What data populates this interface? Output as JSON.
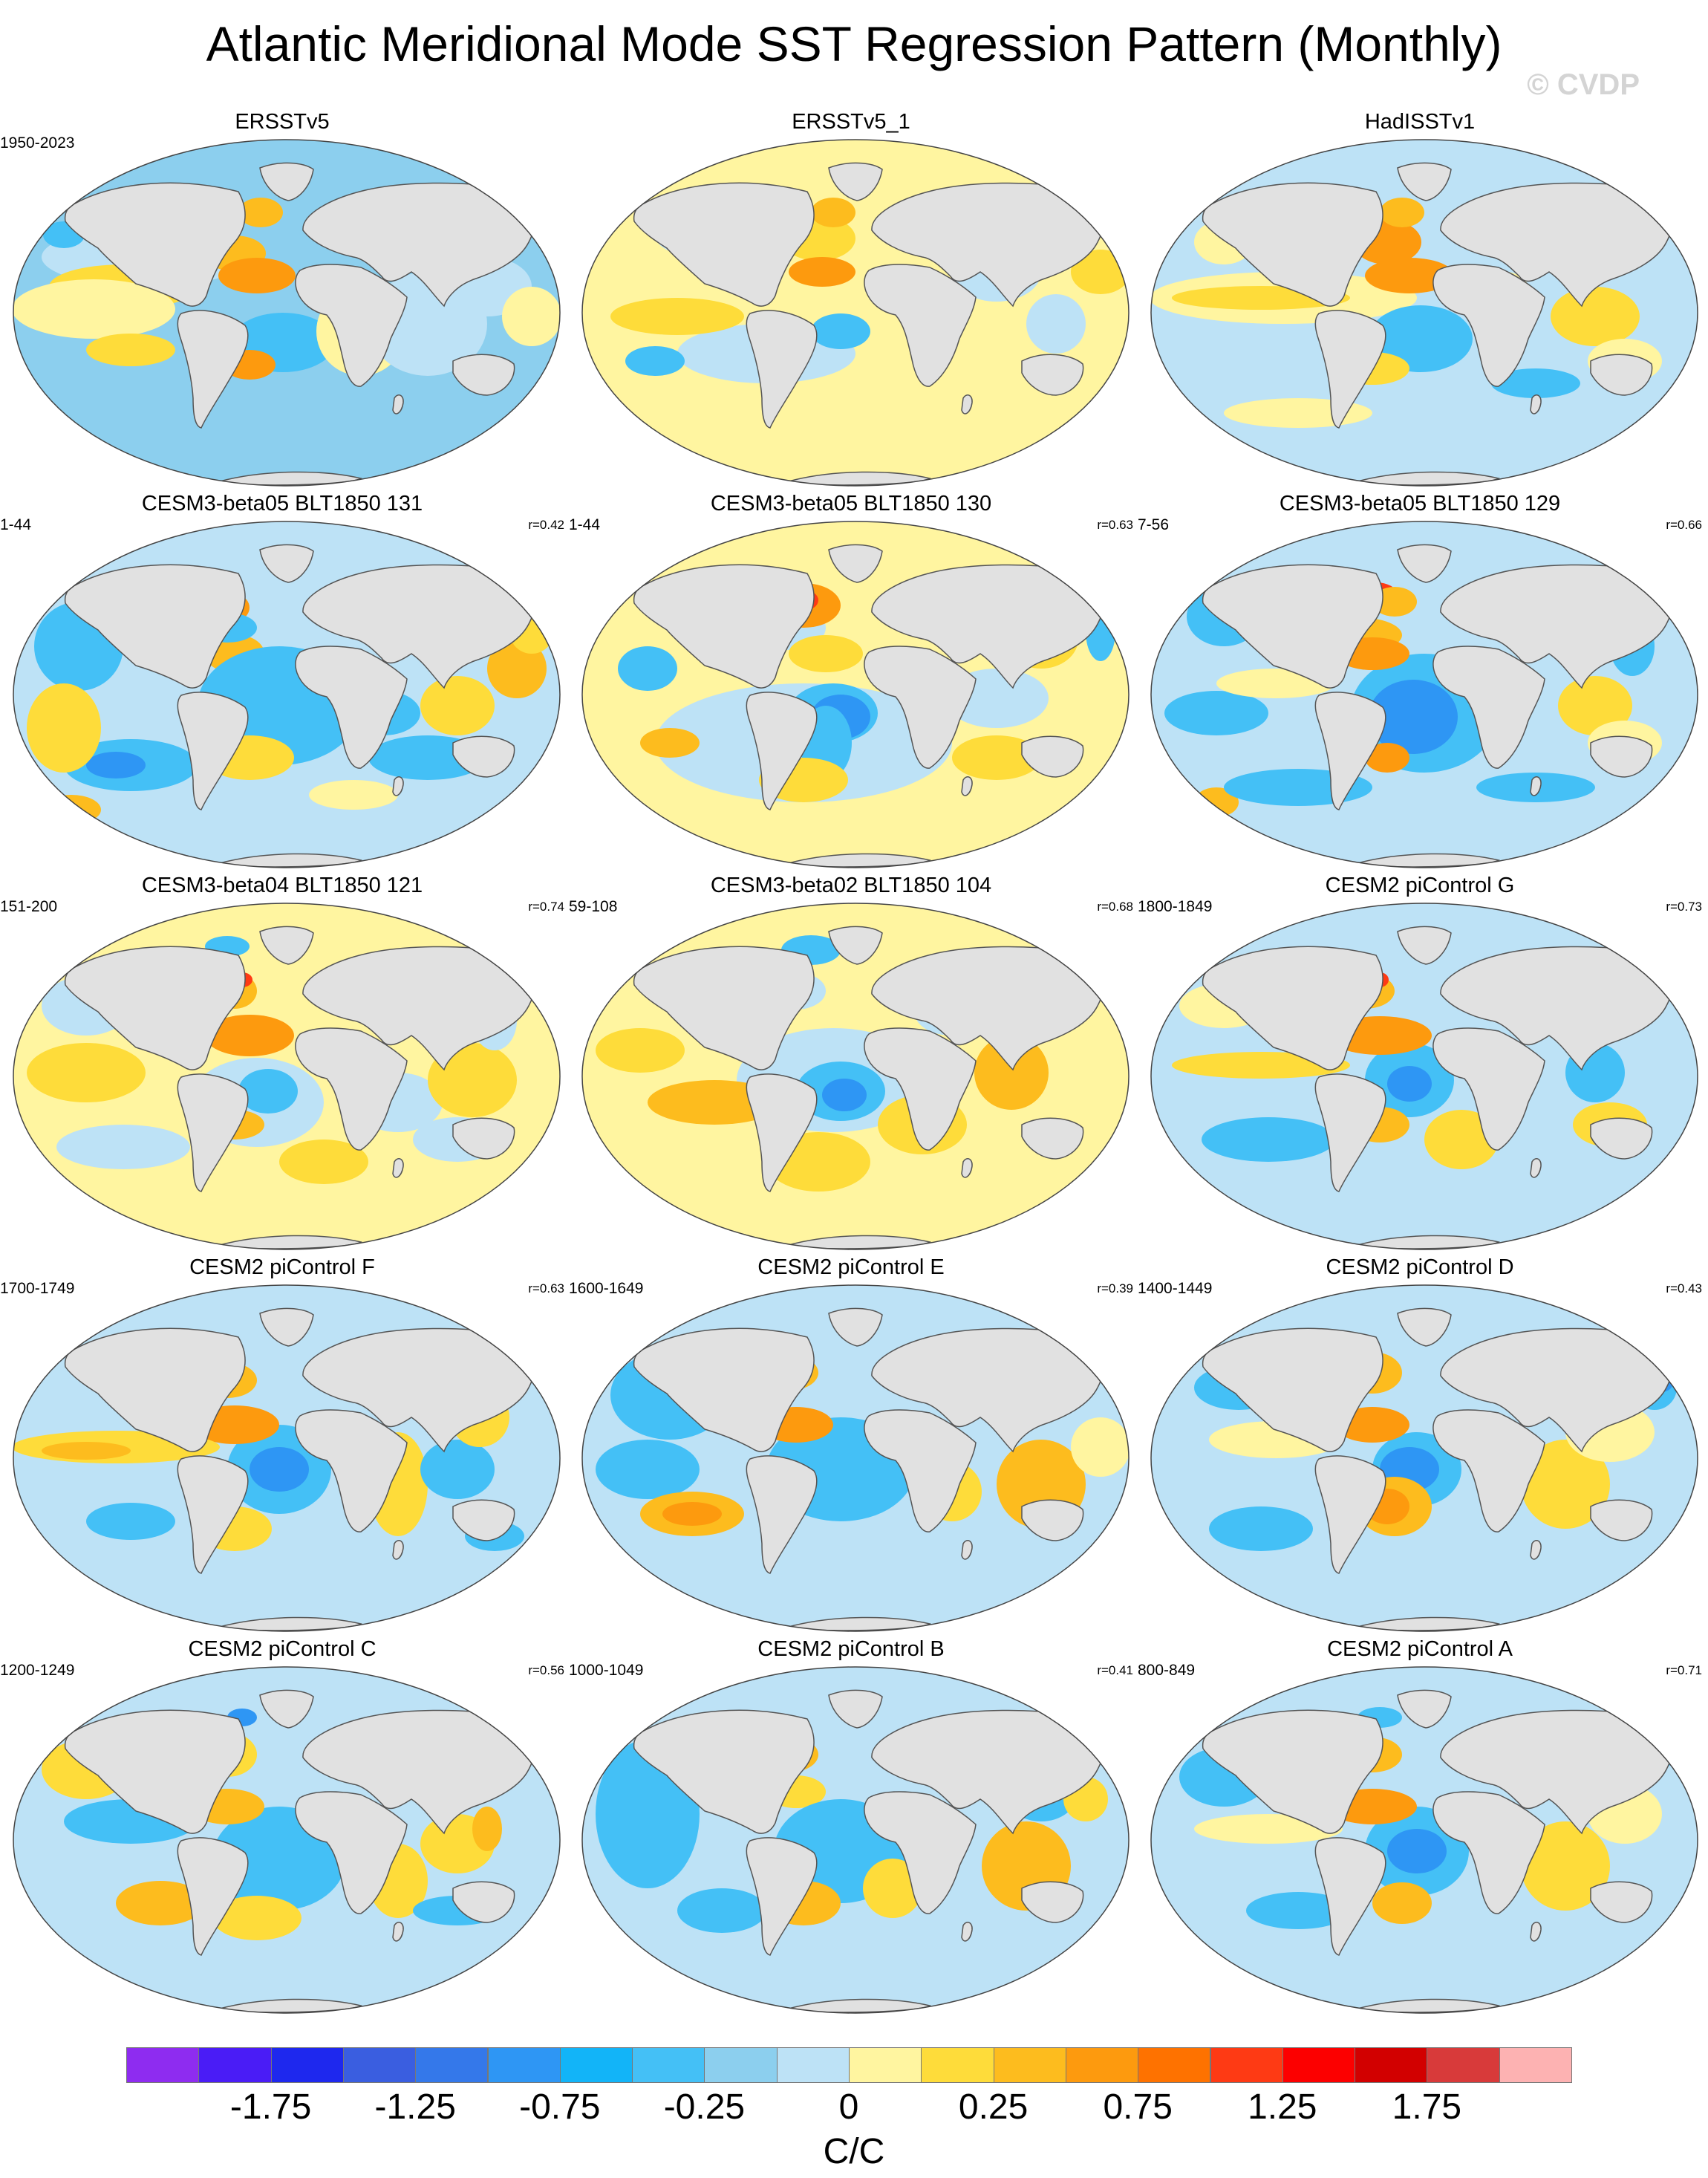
{
  "title": "Atlantic Meridional Mode SST Regression Pattern (Monthly)",
  "watermark": "© CVDP",
  "panels": [
    {
      "title": "ERSSTv5",
      "years": "1950-2023",
      "corr": "",
      "pattern": "obs"
    },
    {
      "title": "ERSSTv5_1",
      "years": "",
      "corr": "",
      "pattern": "obs_warm"
    },
    {
      "title": "HadISSTv1",
      "years": "",
      "corr": "",
      "pattern": "obs_had"
    },
    {
      "title": "CESM3-beta05 BLT1850 131",
      "years": "1-44",
      "corr": "r=0.42",
      "pattern": "cesm3_a"
    },
    {
      "title": "CESM3-beta05 BLT1850 130",
      "years": "1-44",
      "corr": "r=0.63",
      "pattern": "cesm3_b"
    },
    {
      "title": "CESM3-beta05 BLT1850 129",
      "years": "7-56",
      "corr": "r=0.66",
      "pattern": "cesm3_c"
    },
    {
      "title": "CESM3-beta04 BLT1850 121",
      "years": "151-200",
      "corr": "r=0.74",
      "pattern": "cesm3_d"
    },
    {
      "title": "CESM3-beta02 BLT1850 104",
      "years": "59-108",
      "corr": "r=0.68",
      "pattern": "cesm3_e"
    },
    {
      "title": "CESM2 piControl G",
      "years": "1800-1849",
      "corr": "r=0.73",
      "pattern": "cesm2_g"
    },
    {
      "title": "CESM2 piControl F",
      "years": "1700-1749",
      "corr": "r=0.63",
      "pattern": "cesm2_f"
    },
    {
      "title": "CESM2 piControl E",
      "years": "1600-1649",
      "corr": "r=0.39",
      "pattern": "cesm2_e"
    },
    {
      "title": "CESM2 piControl D",
      "years": "1400-1449",
      "corr": "r=0.43",
      "pattern": "cesm2_d"
    },
    {
      "title": "CESM2 piControl C",
      "years": "1200-1249",
      "corr": "r=0.56",
      "pattern": "cesm2_c"
    },
    {
      "title": "CESM2 piControl B",
      "years": "1000-1049",
      "corr": "r=0.41",
      "pattern": "cesm2_b"
    },
    {
      "title": "CESM2 piControl A",
      "years": "800-849",
      "corr": "r=0.71",
      "pattern": "cesm2_a"
    }
  ],
  "colorbar": {
    "colors": [
      "#8e2cf0",
      "#4a1cf6",
      "#1e28ee",
      "#3a5ee0",
      "#3478ea",
      "#2e96f4",
      "#12b4f8",
      "#44c0f6",
      "#8ccfee",
      "#bde2f6",
      "#fff5a0",
      "#fedc3a",
      "#fdbc1e",
      "#fd9a0e",
      "#fe7200",
      "#fe3a14",
      "#fc0000",
      "#d20000",
      "#d83a3a",
      "#fdb2b2"
    ],
    "labels": [
      "-1.75",
      "-1.25",
      "-0.75",
      "-0.25",
      "0",
      "0.25",
      "0.75",
      "1.25",
      "1.75"
    ],
    "units": "C/C"
  },
  "chart_data": {
    "type": "heatmap",
    "title": "Atlantic Meridional Mode SST Regression Pattern (Monthly)",
    "units": "C/C",
    "projection": "global Robinson-like ellipse, Atlantic-centred",
    "color_levels": [
      -2.0,
      -1.75,
      -1.5,
      -1.25,
      -1.0,
      -0.75,
      -0.5,
      -0.25,
      -0.1,
      0,
      0.1,
      0.25,
      0.5,
      0.75,
      1.0,
      1.25,
      1.5,
      1.75,
      2.0
    ],
    "colorbar_tick_labels": [
      "-1.75",
      "-1.25",
      "-0.75",
      "-0.25",
      "0",
      "0.25",
      "0.75",
      "1.25",
      "1.75"
    ],
    "panels": [
      {
        "name": "ERSSTv5",
        "period": "1950-2023",
        "pattern_r": null
      },
      {
        "name": "ERSSTv5_1",
        "period": null,
        "pattern_r": null
      },
      {
        "name": "HadISSTv1",
        "period": null,
        "pattern_r": null
      },
      {
        "name": "CESM3-beta05 BLT1850 131",
        "period": "1-44",
        "pattern_r": 0.42
      },
      {
        "name": "CESM3-beta05 BLT1850 130",
        "period": "1-44",
        "pattern_r": 0.63
      },
      {
        "name": "CESM3-beta05 BLT1850 129",
        "period": "7-56",
        "pattern_r": 0.66
      },
      {
        "name": "CESM3-beta04 BLT1850 121",
        "period": "151-200",
        "pattern_r": 0.74
      },
      {
        "name": "CESM3-beta02 BLT1850 104",
        "period": "59-108",
        "pattern_r": 0.68
      },
      {
        "name": "CESM2 piControl G",
        "period": "1800-1849",
        "pattern_r": 0.73
      },
      {
        "name": "CESM2 piControl F",
        "period": "1700-1749",
        "pattern_r": 0.63
      },
      {
        "name": "CESM2 piControl E",
        "period": "1600-1649",
        "pattern_r": 0.39
      },
      {
        "name": "CESM2 piControl D",
        "period": "1400-1449",
        "pattern_r": 0.43
      },
      {
        "name": "CESM2 piControl C",
        "period": "1200-1249",
        "pattern_r": 0.56
      },
      {
        "name": "CESM2 piControl B",
        "period": "1000-1049",
        "pattern_r": 0.41
      },
      {
        "name": "CESM2 piControl A",
        "period": "800-849",
        "pattern_r": 0.71
      }
    ]
  }
}
